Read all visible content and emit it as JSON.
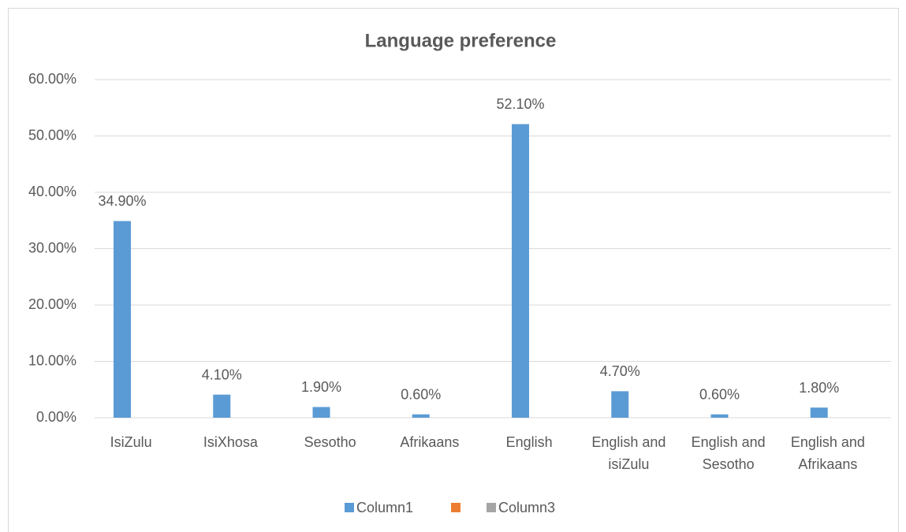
{
  "chart_data": {
    "type": "bar",
    "title": "Language preference",
    "categories": [
      "IsiZulu",
      "IsiXhosa",
      "Sesotho",
      "Afrikaans",
      "English",
      "English and isiZulu",
      "English and Sesotho",
      "English and Afrikaans"
    ],
    "series": [
      {
        "name": "Column1",
        "color": "#5b9bd5",
        "values": [
          34.9,
          4.1,
          1.9,
          0.6,
          52.1,
          4.7,
          0.6,
          1.8
        ],
        "value_labels": [
          "34.90%",
          "4.10%",
          "1.90%",
          "0.60%",
          "52.10%",
          "4.70%",
          "0.60%",
          "1.80%"
        ]
      },
      {
        "color": "#ed7d31",
        "values": [
          null,
          null,
          null,
          null,
          null,
          null,
          null,
          null
        ]
      },
      {
        "name": "Column3",
        "color": "#a5a5a5",
        "values": [
          null,
          null,
          null,
          null,
          null,
          null,
          null,
          null
        ]
      }
    ],
    "ylim": [
      0,
      60
    ],
    "yticks": [
      {
        "value": 0,
        "label": "0.00%"
      },
      {
        "value": 10,
        "label": "10.00%"
      },
      {
        "value": 20,
        "label": "20.00%"
      },
      {
        "value": 30,
        "label": "30.00%"
      },
      {
        "value": 40,
        "label": "40.00%"
      },
      {
        "value": 50,
        "label": "50.00%"
      },
      {
        "value": 60,
        "label": "60.00%"
      }
    ],
    "grid": true,
    "legend": "bottom"
  }
}
